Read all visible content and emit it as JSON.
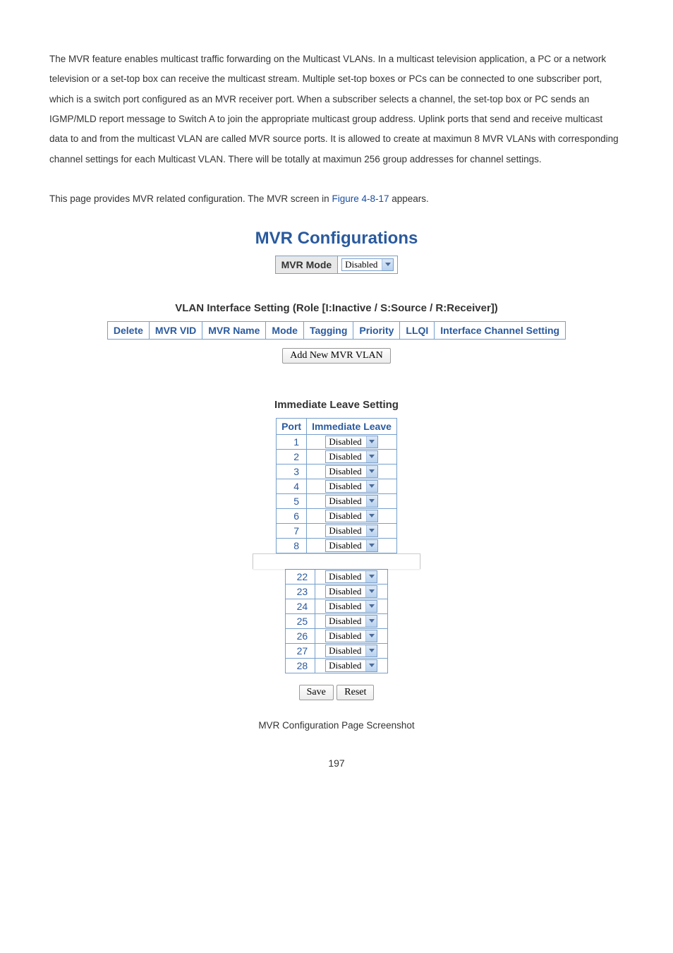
{
  "paragraph1": "The MVR feature enables multicast traffic forwarding on the Multicast VLANs. In a multicast television application, a PC or a network television or a set-top box can receive the multicast stream. Multiple set-top boxes or PCs can be connected to one subscriber port, which is a switch port configured as an MVR receiver port. When a subscriber selects a channel, the set-top box or PC sends an IGMP/MLD report message to Switch A to join the appropriate multicast group address. Uplink ports that send and receive multicast data to and from the multicast VLAN are called MVR source ports. It is allowed to create at maximun 8 MVR VLANs with corresponding channel settings for each Multicast VLAN. There will be totally at maximun 256 group addresses for channel settings.",
  "paragraph2_pre": "This page provides MVR related configuration. The MVR screen in ",
  "paragraph2_link": "Figure 4-8-17",
  "paragraph2_post": " appears.",
  "config_title": "MVR Configurations",
  "mvr_mode": {
    "label": "MVR Mode",
    "value": "Disabled"
  },
  "vlan_section_heading": "VLAN Interface Setting (Role [I:Inactive / S:Source / R:Receiver])",
  "vlan_headers": [
    "Delete",
    "MVR VID",
    "MVR Name",
    "Mode",
    "Tagging",
    "Priority",
    "LLQI",
    "Interface Channel Setting"
  ],
  "add_button": "Add New MVR VLAN",
  "leave_heading": "Immediate Leave Setting",
  "leave_headers": {
    "port": "Port",
    "leave": "Immediate Leave"
  },
  "leave_rows_top": [
    {
      "port": "1",
      "value": "Disabled"
    },
    {
      "port": "2",
      "value": "Disabled"
    },
    {
      "port": "3",
      "value": "Disabled"
    },
    {
      "port": "4",
      "value": "Disabled"
    },
    {
      "port": "5",
      "value": "Disabled"
    },
    {
      "port": "6",
      "value": "Disabled"
    },
    {
      "port": "7",
      "value": "Disabled"
    },
    {
      "port": "8",
      "value": "Disabled"
    }
  ],
  "leave_rows_bottom": [
    {
      "port": "22",
      "value": "Disabled"
    },
    {
      "port": "23",
      "value": "Disabled"
    },
    {
      "port": "24",
      "value": "Disabled"
    },
    {
      "port": "25",
      "value": "Disabled"
    },
    {
      "port": "26",
      "value": "Disabled"
    },
    {
      "port": "27",
      "value": "Disabled"
    },
    {
      "port": "28",
      "value": "Disabled"
    }
  ],
  "buttons": {
    "save": "Save",
    "reset": "Reset"
  },
  "caption": "MVR Configuration Page Screenshot",
  "page_number": "197",
  "colors": {
    "heading_blue": "#2a5a9e",
    "border_blue": "#769fcc",
    "text": "#333333",
    "link": "#1a4d9e"
  }
}
